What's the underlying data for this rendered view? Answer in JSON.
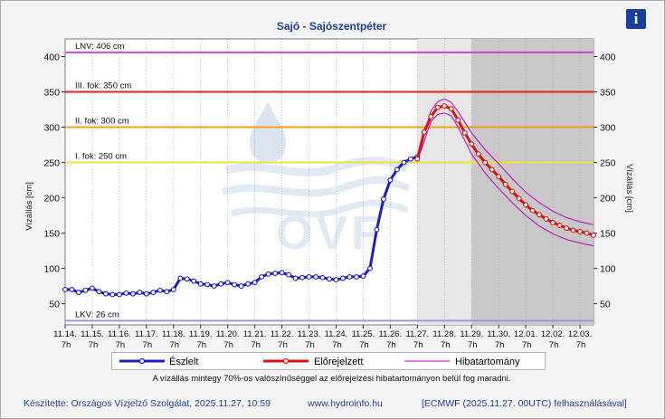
{
  "info_label": "i",
  "footer": {
    "author": "Készítette: Országos Vízjelző Szolgálat, 2025.11.27. 10:59",
    "website": "www.hydroinfo.hu",
    "model_note": "[ECMWF (2025.11.27. 00UTC) felhasználásával]"
  },
  "note": "A vízállás mintegy 70%-os valószínűséggel az előrejelzési hibatartományon belül fog maradni.",
  "watermark": "OVF",
  "colors": {
    "observed": "#1c1ccc",
    "forecast": "#e01010",
    "error_band": "#c000c0",
    "lnv": "#cc44cc",
    "level3": "#e02020",
    "level2": "#f0a020",
    "level1": "#f0e040",
    "lkv": "#9999dd"
  },
  "chart_data": {
    "type": "line",
    "title": "Sajó - Sajószentpéter",
    "ylabel": "Vízállás [cm]",
    "ylabel_right": "Vízállás [cm]",
    "ylim": [
      20,
      425
    ],
    "yticks": [
      50,
      100,
      150,
      200,
      250,
      300,
      350,
      400
    ],
    "xlim": [
      0,
      19.5
    ],
    "x_tick_dates": [
      "11.14.",
      "11.15.",
      "11.16.",
      "11.17.",
      "11.18.",
      "11.19.",
      "11.20.",
      "11.21.",
      "11.22.",
      "11.23.",
      "11.24.",
      "11.25.",
      "11.26.",
      "11.27.",
      "11.28.",
      "11.29.",
      "11.30.",
      "12.01.",
      "12.02.",
      "12.03."
    ],
    "x_tick_hour": "7h",
    "shaded_regions": [
      {
        "from": 13.0,
        "to": 15.0,
        "shade": "light"
      },
      {
        "from": 15.0,
        "to": 19.5,
        "shade": "dark"
      }
    ],
    "levels": [
      {
        "label": "LNV: 406 cm",
        "value": 406,
        "color_key": "lnv"
      },
      {
        "label": "III. fok: 350 cm",
        "value": 350,
        "color_key": "level3"
      },
      {
        "label": "II. fok: 300 cm",
        "value": 300,
        "color_key": "level2"
      },
      {
        "label": "I. fok: 250 cm",
        "value": 250,
        "color_key": "level1"
      },
      {
        "label": "LKV: 26 cm",
        "value": 26,
        "color_key": "lkv"
      }
    ],
    "legend": [
      "Észlelt",
      "Előrejelzett",
      "Hibatartomány"
    ],
    "series": [
      {
        "name": "Észlelt",
        "x": [
          0,
          0.25,
          0.5,
          0.75,
          1.0,
          1.25,
          1.5,
          1.75,
          2.0,
          2.25,
          2.5,
          2.75,
          3.0,
          3.25,
          3.5,
          3.75,
          4.0,
          4.25,
          4.5,
          4.75,
          5.0,
          5.25,
          5.5,
          5.75,
          6.0,
          6.25,
          6.5,
          6.75,
          7.0,
          7.25,
          7.5,
          7.75,
          8.0,
          8.25,
          8.5,
          8.75,
          9.0,
          9.25,
          9.5,
          9.75,
          10.0,
          10.25,
          10.5,
          10.75,
          11.0,
          11.25,
          11.5,
          11.75,
          12.0,
          12.25,
          12.5,
          12.75,
          13.0
        ],
        "values": [
          70,
          70,
          66,
          69,
          72,
          67,
          64,
          63,
          63,
          65,
          64,
          66,
          64,
          66,
          69,
          67,
          70,
          86,
          85,
          82,
          78,
          77,
          75,
          78,
          80,
          77,
          75,
          78,
          80,
          88,
          92,
          93,
          94,
          91,
          86,
          87,
          88,
          88,
          87,
          85,
          84,
          86,
          88,
          88,
          89,
          100,
          155,
          198,
          225,
          240,
          250,
          255,
          258
        ]
      },
      {
        "name": "Előrejelzett",
        "x": [
          13.0,
          13.25,
          13.5,
          13.75,
          14.0,
          14.25,
          14.5,
          14.75,
          15.0,
          15.25,
          15.5,
          15.75,
          16.0,
          16.25,
          16.5,
          16.75,
          17.0,
          17.25,
          17.5,
          17.75,
          18.0,
          18.25,
          18.5,
          18.75,
          19.0,
          19.25,
          19.5
        ],
        "values": [
          255,
          293,
          315,
          328,
          330,
          326,
          310,
          292,
          276,
          262,
          250,
          240,
          230,
          219,
          209,
          199,
          190,
          182,
          176,
          170,
          165,
          161,
          157,
          154,
          152,
          150,
          147
        ]
      },
      {
        "name": "Hibatartomány felső",
        "x": [
          13.0,
          13.5,
          13.75,
          14.0,
          14.25,
          14.5,
          15.0,
          15.5,
          16.0,
          16.5,
          17.0,
          17.5,
          18.0,
          18.5,
          19.0,
          19.5
        ],
        "values": [
          258,
          323,
          336,
          340,
          335,
          322,
          292,
          268,
          248,
          227,
          208,
          193,
          181,
          172,
          166,
          162
        ]
      },
      {
        "name": "Hibatartomány alsó",
        "x": [
          13.0,
          13.5,
          13.75,
          14.0,
          14.25,
          14.5,
          15.0,
          15.5,
          16.0,
          16.5,
          17.0,
          17.5,
          18.0,
          18.5,
          19.0,
          19.5
        ],
        "values": [
          252,
          308,
          318,
          320,
          316,
          300,
          262,
          235,
          213,
          193,
          175,
          160,
          149,
          141,
          136,
          132
        ]
      }
    ]
  }
}
